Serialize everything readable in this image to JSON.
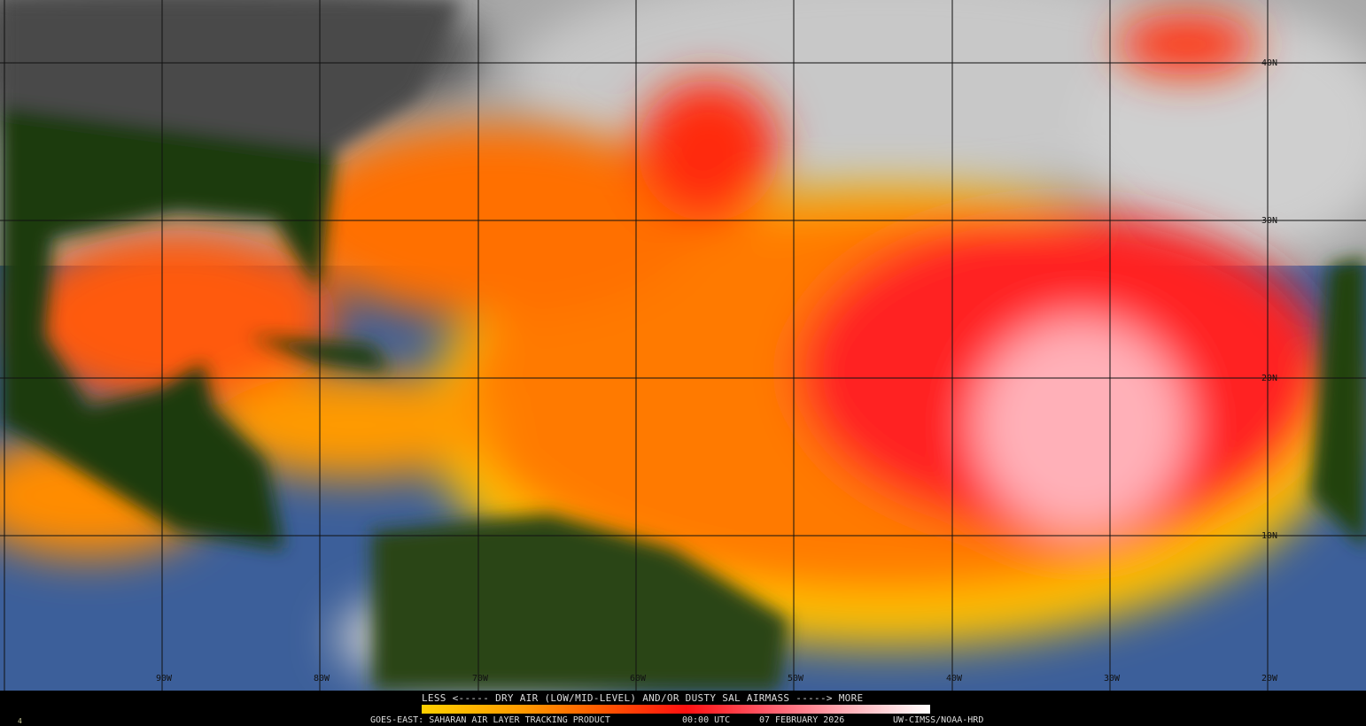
{
  "map": {
    "type": "satellite-imagery",
    "latitude_labels": [
      "40N",
      "30N",
      "20N",
      "10N"
    ],
    "longitude_labels": [
      "90W",
      "80W",
      "70W",
      "60W",
      "50W",
      "40W",
      "30W",
      "20W"
    ],
    "colors": {
      "land": "#1e3a0a",
      "ocean": "#3c5f9a",
      "cloud": "#bdbdbd",
      "low": "#ffd000",
      "mid": "#ff5a00",
      "high": "#ff1a1a",
      "max": "#ffc0c8"
    }
  },
  "legend": {
    "title": "LESS <----- DRY AIR (LOW/MID-LEVEL) AND/OR DUSTY SAL AIRMASS -----> MORE",
    "scale_colors": [
      "#ffd000",
      "#ff5a00",
      "#ff1010",
      "#ffb0b8",
      "#ffffff"
    ]
  },
  "footer": {
    "product": "GOES-EAST: SAHARAN AIR LAYER TRACKING PRODUCT",
    "time": "00:00 UTC",
    "date": "07 FEBRUARY 2026",
    "credit": "UW-CIMSS/NOAA-HRD",
    "corner_mark": "4"
  }
}
